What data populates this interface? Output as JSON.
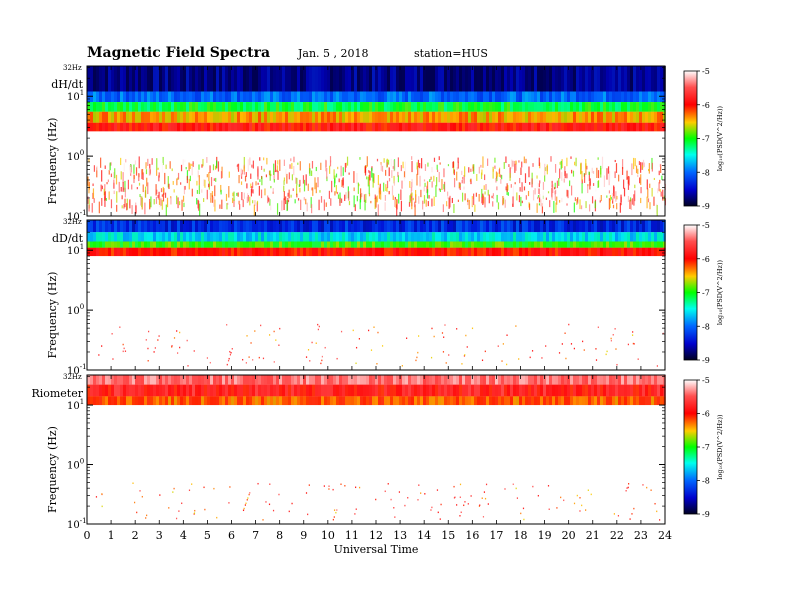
{
  "header": {
    "title": "Magnetic  Field  Spectra",
    "date": "Jan. 5  , 2018",
    "station": "station=HUS"
  },
  "chart_data": [
    {
      "type": "heatmap",
      "panel_label": "dH/dt",
      "ylabel": "Frequency (Hz)",
      "top_label": "32Hz",
      "yticks": [
        "10",
        "10",
        "10"
      ],
      "ytick_exponents": [
        "1",
        "0",
        "-1"
      ],
      "ylim": [
        0.1,
        32
      ],
      "yscale": "log",
      "colorbar": {
        "label": "log10(PSD(V^2/Hz))",
        "label_display": "log₁₀(PSD(V^2/Hz))",
        "ticks": [
          "-5",
          "-6",
          "-7",
          "-8",
          "-9"
        ],
        "range": [
          -9,
          -5
        ]
      },
      "bands": [
        {
          "f_low": 12,
          "f_high": 32,
          "level": -8.7
        },
        {
          "f_low": 8,
          "f_high": 12,
          "level": -8.0
        },
        {
          "f_low": 5.5,
          "f_high": 8,
          "level": -7.1
        },
        {
          "f_low": 3.6,
          "f_high": 5.5,
          "level": -6.4
        },
        {
          "f_low": 2.6,
          "f_high": 3.6,
          "level": -5.9
        },
        {
          "f_low": 0.15,
          "f_high": 1.0,
          "level": -6.0,
          "sparse": true
        }
      ]
    },
    {
      "type": "heatmap",
      "panel_label": "dD/dt",
      "ylabel": "Frequency (Hz)",
      "top_label": "32Hz",
      "yticks": [
        "10",
        "10",
        "10"
      ],
      "ytick_exponents": [
        "1",
        "0",
        "-1"
      ],
      "ylim": [
        0.1,
        32
      ],
      "yscale": "log",
      "colorbar": {
        "label": "log10(PSD(V^2/Hz))",
        "label_display": "log₁₀(PSD(V^2/Hz))",
        "ticks": [
          "-5",
          "-6",
          "-7",
          "-8",
          "-9"
        ],
        "range": [
          -9,
          -5
        ]
      },
      "bands": [
        {
          "f_low": 20,
          "f_high": 32,
          "level": -8.3
        },
        {
          "f_low": 14,
          "f_high": 20,
          "level": -7.6
        },
        {
          "f_low": 11,
          "f_high": 14,
          "level": -6.9
        },
        {
          "f_low": 8,
          "f_high": 11,
          "level": -6.0
        },
        {
          "f_low": 0.12,
          "f_high": 0.6,
          "level": -6.0,
          "sparse": true
        }
      ]
    },
    {
      "type": "heatmap",
      "panel_label": "Riometer",
      "ylabel": "Frequency (Hz)",
      "top_label": "32Hz",
      "yticks": [
        "10",
        "10",
        "10"
      ],
      "ytick_exponents": [
        "1",
        "0",
        "-1"
      ],
      "ylim": [
        0.1,
        32
      ],
      "yscale": "log",
      "colorbar": {
        "label": "log10(PSD(V^2/Hz))",
        "label_display": "log₁₀(PSD(V^2/Hz))",
        "ticks": [
          "-5",
          "-6",
          "-7",
          "-8",
          "-9"
        ],
        "range": [
          -9,
          -5
        ]
      },
      "bands": [
        {
          "f_low": 22,
          "f_high": 32,
          "level": -5.4
        },
        {
          "f_low": 14,
          "f_high": 22,
          "level": -5.8
        },
        {
          "f_low": 10,
          "f_high": 14,
          "level": -6.2
        },
        {
          "f_low": 0.12,
          "f_high": 0.5,
          "level": -6.0,
          "sparse": true
        }
      ]
    }
  ],
  "xaxis": {
    "label": "Universal Time",
    "ticks": [
      "0",
      "1",
      "2",
      "3",
      "4",
      "5",
      "6",
      "7",
      "8",
      "9",
      "10",
      "11",
      "12",
      "13",
      "14",
      "15",
      "16",
      "17",
      "18",
      "19",
      "20",
      "21",
      "22",
      "23",
      "24"
    ],
    "range": [
      0,
      24
    ]
  }
}
